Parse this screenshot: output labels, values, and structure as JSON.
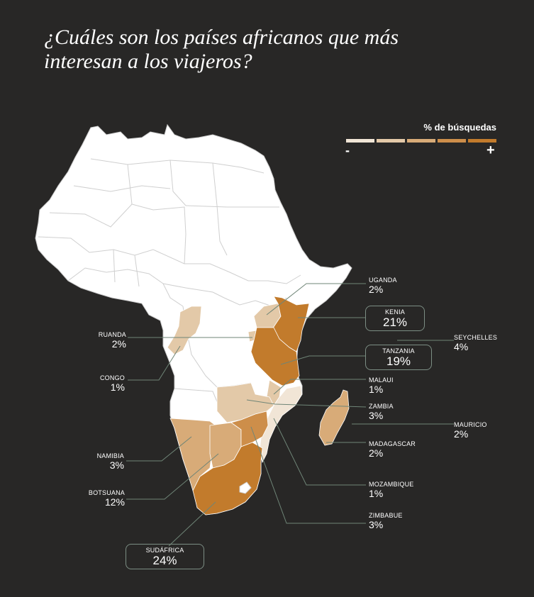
{
  "title_line1": "¿Cuáles son los países africanos que más",
  "title_line2": "interesan a los viajeros?",
  "legend": {
    "title": "% de búsquedas",
    "min_label": "-",
    "max_label": "+",
    "colors": [
      "#f1e5d6",
      "#e3c9a8",
      "#d8ab78",
      "#cd8e4a",
      "#c27b2c"
    ]
  },
  "colors": {
    "background": "#282726",
    "land": "#ffffff",
    "border": "#cfcfcf",
    "leader_line": "#6f8577"
  },
  "countries": [
    {
      "name": "UGANDA",
      "value": "2%",
      "share": 2
    },
    {
      "name": "KENIA",
      "value": "21%",
      "share": 21
    },
    {
      "name": "RUANDA",
      "value": "2%",
      "share": 2
    },
    {
      "name": "SEYCHELLES",
      "value": "4%",
      "share": 4
    },
    {
      "name": "TANZANIA",
      "value": "19%",
      "share": 19
    },
    {
      "name": "CONGO",
      "value": "1%",
      "share": 1
    },
    {
      "name": "MALAUI",
      "value": "1%",
      "share": 1
    },
    {
      "name": "ZAMBIA",
      "value": "3%",
      "share": 3
    },
    {
      "name": "MAURICIO",
      "value": "2%",
      "share": 2
    },
    {
      "name": "NAMIBIA",
      "value": "3%",
      "share": 3
    },
    {
      "name": "MADAGASCAR",
      "value": "2%",
      "share": 2
    },
    {
      "name": "MOZAMBIQUE",
      "value": "1%",
      "share": 1
    },
    {
      "name": "BOTSUANA",
      "value": "12%",
      "share": 12
    },
    {
      "name": "ZIMBABUE",
      "value": "3%",
      "share": 3
    },
    {
      "name": "SUDÁFRICA",
      "value": "24%",
      "share": 24
    }
  ]
}
